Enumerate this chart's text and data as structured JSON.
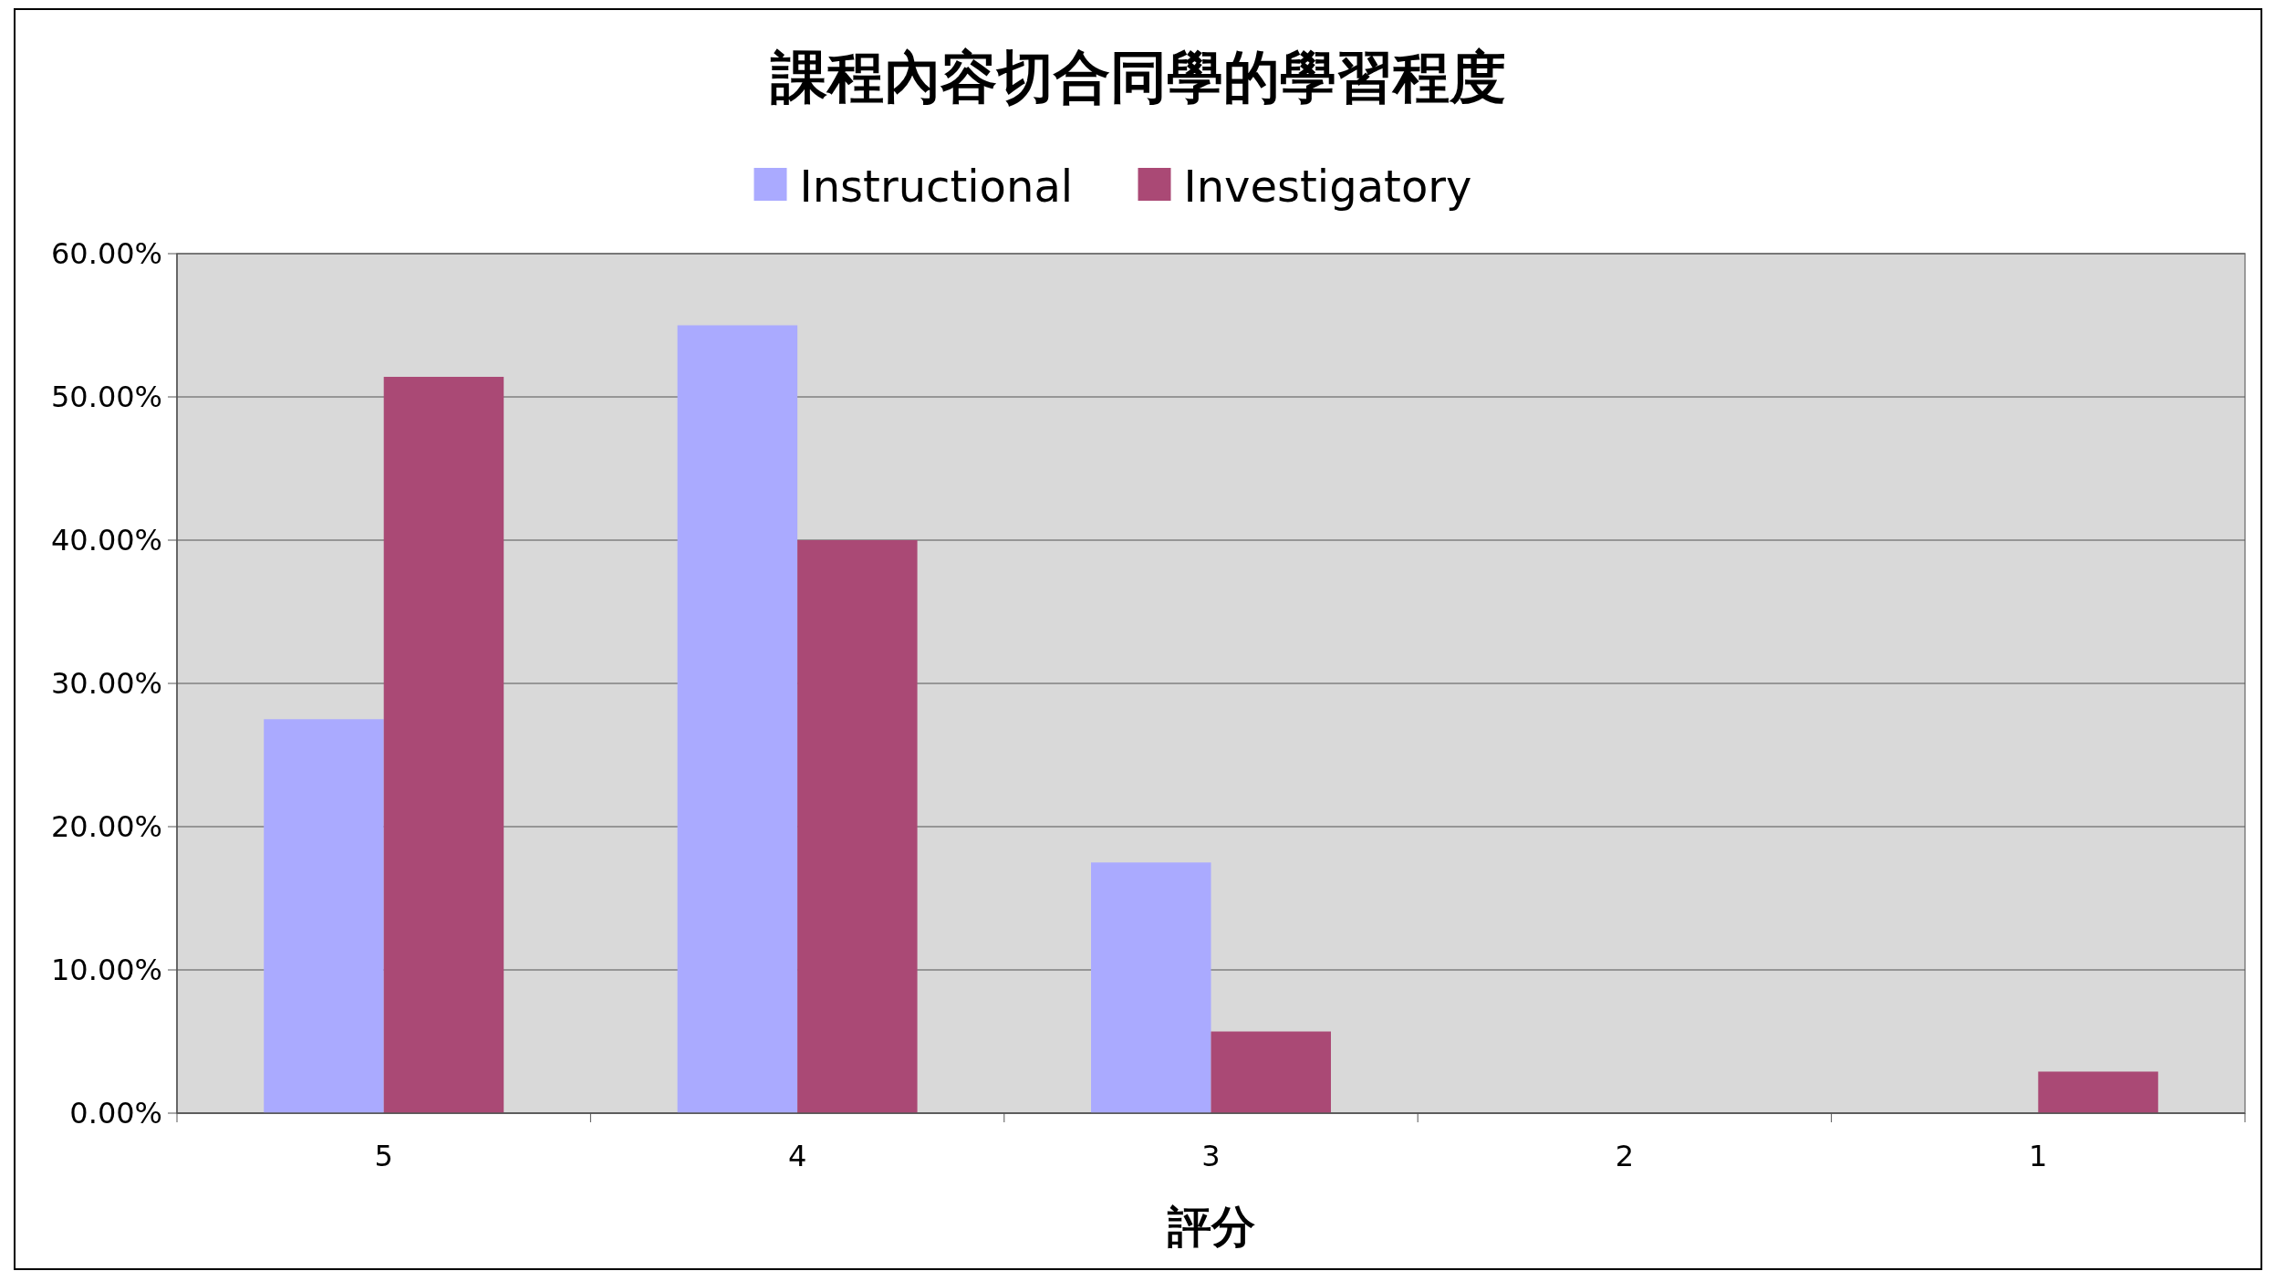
{
  "chart_data": {
    "type": "bar",
    "title": "課程內容切合同學的學習程度",
    "xlabel": "評分",
    "categories": [
      "5",
      "4",
      "3",
      "2",
      "1"
    ],
    "series": [
      {
        "name": "Instructional",
        "color": "#aaaaff",
        "values": [
          27.5,
          55,
          17.5,
          0,
          0
        ]
      },
      {
        "name": "Investigatory",
        "color": "#aa4975",
        "values": [
          51.4,
          40,
          5.7,
          0,
          2.9
        ]
      }
    ],
    "ylim": [
      0,
      60
    ],
    "yticks": [
      {
        "value": 0,
        "label": "0.00%"
      },
      {
        "value": 10,
        "label": "10.00%"
      },
      {
        "value": 20,
        "label": "20.00%"
      },
      {
        "value": 30,
        "label": "30.00%"
      },
      {
        "value": 40,
        "label": "40.00%"
      },
      {
        "value": 50,
        "label": "50.00%"
      },
      {
        "value": 60,
        "label": "60.00%"
      }
    ],
    "grid": "y",
    "legend": "top"
  }
}
